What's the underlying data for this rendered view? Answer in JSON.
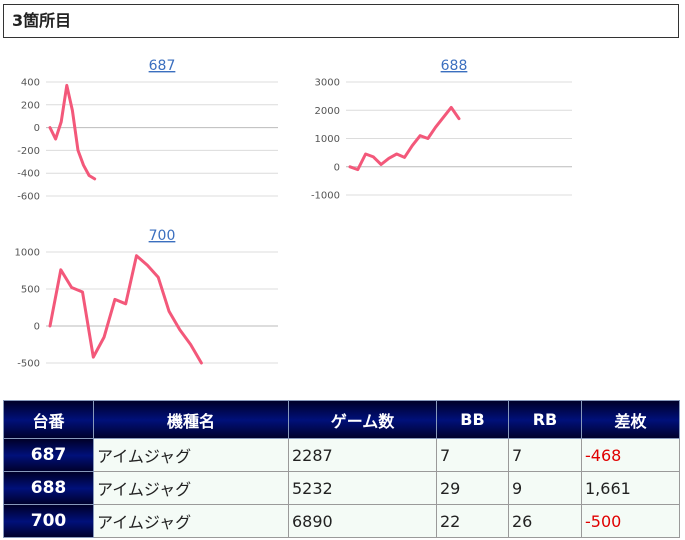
{
  "header": {
    "title": "3箇所目"
  },
  "colors": {
    "series": "#f3587a",
    "link": "#3b6fbf",
    "negative": "#e00000"
  },
  "chart_data": [
    {
      "type": "line",
      "title": "687",
      "yticks": [
        "400",
        "200",
        "0",
        "-200",
        "-400",
        "-600"
      ],
      "ylim": [
        -600,
        400
      ],
      "grid": true,
      "values": [
        0,
        -100,
        50,
        370,
        150,
        -200,
        -330,
        -420,
        -450
      ]
    },
    {
      "type": "line",
      "title": "688",
      "yticks": [
        "3000",
        "2000",
        "1000",
        "0",
        "-1000"
      ],
      "ylim": [
        -1000,
        3000
      ],
      "grid": true,
      "values": [
        0,
        -100,
        450,
        350,
        80,
        300,
        450,
        330,
        750,
        1100,
        1000,
        1400,
        1750,
        2100,
        1700
      ]
    },
    {
      "type": "line",
      "title": "700",
      "yticks": [
        "1000",
        "500",
        "0",
        "-500"
      ],
      "ylim": [
        -500,
        1000
      ],
      "grid": true,
      "values": [
        0,
        760,
        520,
        460,
        -420,
        -150,
        360,
        300,
        950,
        820,
        660,
        200,
        -50,
        -250,
        -500
      ]
    }
  ],
  "table": {
    "headers": [
      "台番",
      "機種名",
      "ゲーム数",
      "BB",
      "RB",
      "差枚"
    ],
    "rows": [
      {
        "no": "687",
        "machine": "アイムジャグ",
        "games": "2287",
        "bb": "7",
        "rb": "7",
        "diff": "-468",
        "negative": true
      },
      {
        "no": "688",
        "machine": "アイムジャグ",
        "games": "5232",
        "bb": "29",
        "rb": "9",
        "diff": "1,661",
        "negative": false
      },
      {
        "no": "700",
        "machine": "アイムジャグ",
        "games": "6890",
        "bb": "22",
        "rb": "26",
        "diff": "-500",
        "negative": true
      }
    ]
  }
}
